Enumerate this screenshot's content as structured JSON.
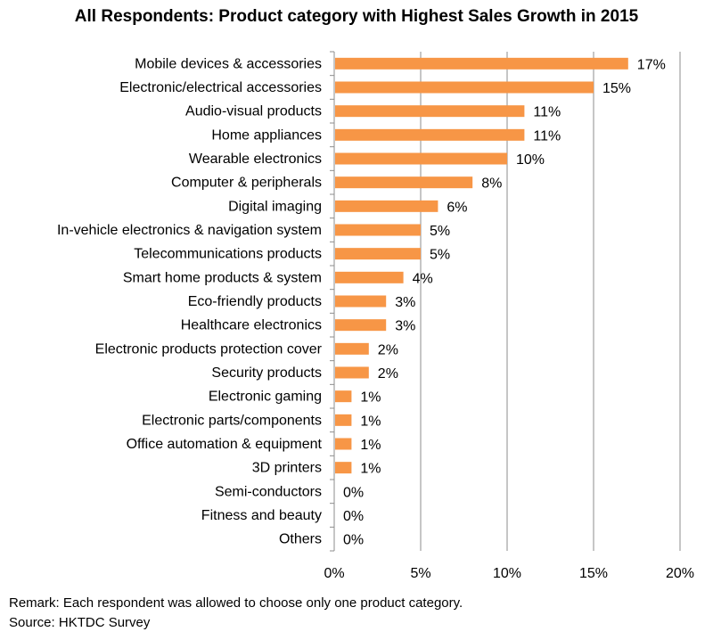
{
  "chart_data": {
    "type": "bar",
    "orientation": "horizontal",
    "title": "All Respondents: Product category with Highest Sales Growth in 2015",
    "categories": [
      "Mobile devices & accessories",
      "Electronic/electrical accessories",
      "Audio-visual products",
      "Home appliances",
      "Wearable electronics",
      "Computer & peripherals",
      "Digital imaging",
      "In-vehicle electronics & navigation system",
      "Telecommunications products",
      "Smart home products & system",
      "Eco-friendly products",
      "Healthcare electronics",
      "Electronic products protection cover",
      "Security products",
      "Electronic gaming",
      "Electronic parts/components",
      "Office automation & equipment",
      "3D printers",
      "Semi-conductors",
      "Fitness and beauty",
      "Others"
    ],
    "values": [
      17,
      15,
      11,
      11,
      10,
      8,
      6,
      5,
      5,
      4,
      3,
      3,
      2,
      2,
      1,
      1,
      1,
      1,
      0,
      0,
      0
    ],
    "value_labels": [
      "17%",
      "15%",
      "11%",
      "11%",
      "10%",
      "8%",
      "6%",
      "5%",
      "5%",
      "4%",
      "3%",
      "3%",
      "2%",
      "2%",
      "1%",
      "1%",
      "1%",
      "1%",
      "0%",
      "0%",
      "0%"
    ],
    "xlim": [
      0,
      20
    ],
    "xticks": [
      0,
      5,
      10,
      15,
      20
    ],
    "xtick_labels": [
      "0%",
      "5%",
      "10%",
      "15%",
      "20%"
    ],
    "xlabel": "",
    "ylabel": "",
    "grid": "vertical",
    "bar_color": "#F79646"
  },
  "notes": {
    "remark": "Remark: Each respondent was allowed to choose only one product category.",
    "source": "Source: HKTDC Survey"
  }
}
